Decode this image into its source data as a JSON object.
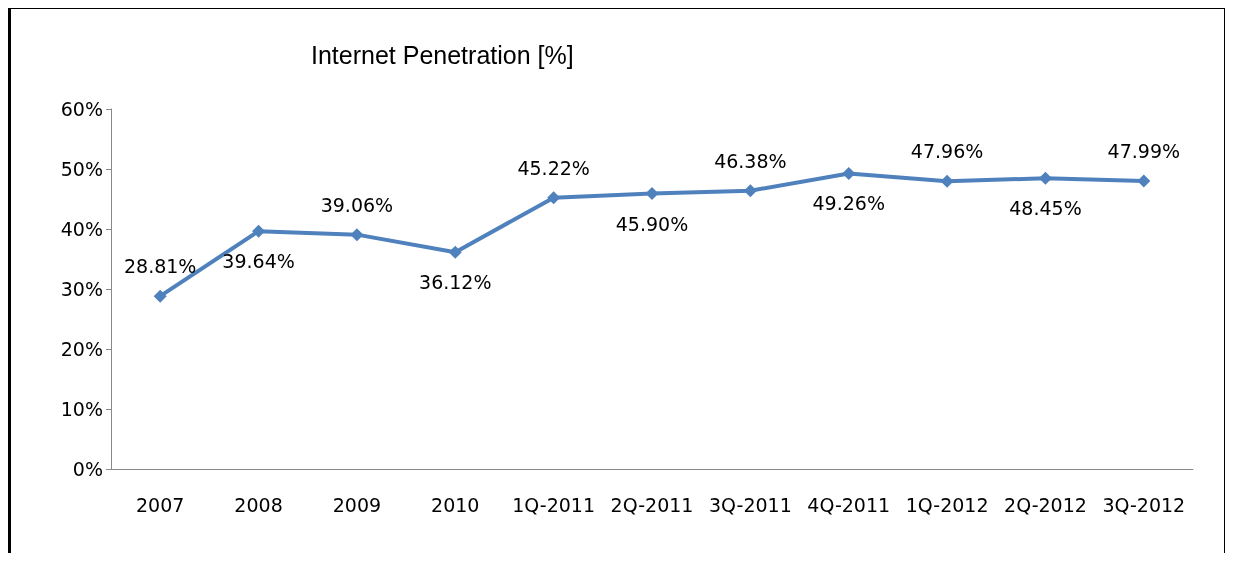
{
  "chart_data": {
    "type": "line",
    "title": "Internet Penetration [%]",
    "categories": [
      "2007",
      "2008",
      "2009",
      "2010",
      "1Q-2011",
      "2Q-2011",
      "3Q-2011",
      "4Q-2011",
      "1Q-2012",
      "2Q-2012",
      "3Q-2012"
    ],
    "values": [
      28.81,
      39.64,
      39.06,
      36.12,
      45.22,
      45.9,
      46.38,
      49.26,
      47.96,
      48.45,
      47.99
    ],
    "value_labels": [
      "28.81%",
      "39.64%",
      "39.06%",
      "36.12%",
      "45.22%",
      "45.90%",
      "46.38%",
      "49.26%",
      "47.96%",
      "48.45%",
      "47.99%"
    ],
    "color": "#4f81bd",
    "marker": "diamond",
    "line_style": "solid",
    "grid": false,
    "ylim": [
      0,
      60
    ],
    "yticks": [
      {
        "value": 0,
        "label": "0%"
      },
      {
        "value": 10,
        "label": "10%"
      },
      {
        "value": 20,
        "label": "20%"
      },
      {
        "value": 30,
        "label": "30%"
      },
      {
        "value": 40,
        "label": "40%"
      },
      {
        "value": 50,
        "label": "50%"
      },
      {
        "value": 60,
        "label": "60%"
      }
    ]
  }
}
